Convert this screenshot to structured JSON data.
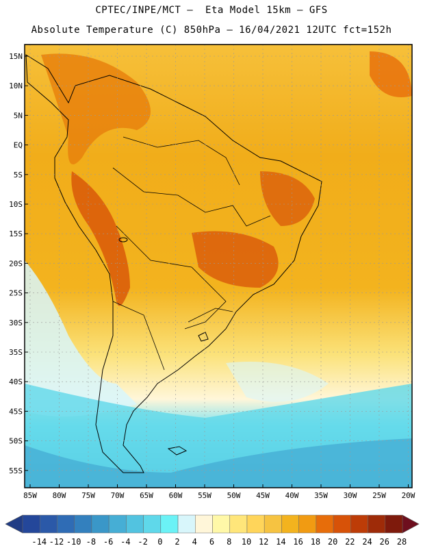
{
  "header": {
    "line1": "CPTEC/INPE/MCT –  Eta Model 15km – GFS",
    "line2": "Absolute Temperature (C) 850hPa – 16/04/2021 12UTC fct=152h"
  },
  "map": {
    "lat_labels": [
      "15N",
      "10N",
      "5N",
      "EQ",
      "5S",
      "10S",
      "15S",
      "20S",
      "25S",
      "30S",
      "35S",
      "40S",
      "45S",
      "50S",
      "55S"
    ],
    "lon_labels": [
      "85W",
      "80W",
      "75W",
      "70W",
      "65W",
      "60W",
      "55W",
      "50W",
      "45W",
      "40W",
      "35W",
      "30W",
      "25W",
      "20W"
    ]
  },
  "colorbar": {
    "labels": [
      "-14",
      "-12",
      "-10",
      "-8",
      "-6",
      "-4",
      "-2",
      "0",
      "2",
      "4",
      "6",
      "8",
      "10",
      "12",
      "14",
      "16",
      "18",
      "20",
      "22",
      "24",
      "26",
      "28"
    ],
    "colors": [
      "#24479a",
      "#2b59a8",
      "#2f6cb5",
      "#3380be",
      "#3a97c8",
      "#46aed5",
      "#52c3e0",
      "#5fd8ea",
      "#6bf2f6",
      "#d8f6fb",
      "#fff6d9",
      "#fff8a8",
      "#ffe67a",
      "#ffd55a",
      "#f6c341",
      "#f3b31e",
      "#f19b12",
      "#e76d0a",
      "#d75208",
      "#bd3c07",
      "#9e2b08",
      "#7e1a0c"
    ],
    "low_color": "#203c85",
    "high_color": "#6e0f1e"
  }
}
